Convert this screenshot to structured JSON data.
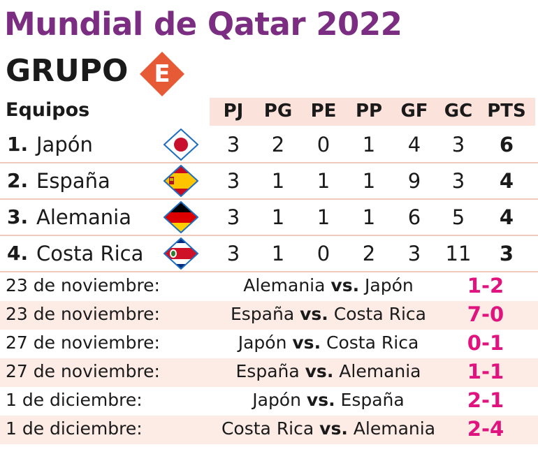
{
  "title": "Mundial de Qatar 2022",
  "group": {
    "label": "GRUPO",
    "letter": "E",
    "badge_color": "#e65a36"
  },
  "standings": {
    "team_header": "Equipos",
    "columns": [
      "PJ",
      "PG",
      "PE",
      "PP",
      "GF",
      "GC",
      "PTS"
    ],
    "rows": [
      {
        "pos": "1.",
        "team": "Japón",
        "flag_icon": "japan-flag-icon",
        "stats": [
          "3",
          "2",
          "0",
          "1",
          "4",
          "3",
          "6"
        ]
      },
      {
        "pos": "2.",
        "team": "España",
        "flag_icon": "spain-flag-icon",
        "stats": [
          "3",
          "1",
          "1",
          "1",
          "9",
          "3",
          "4"
        ]
      },
      {
        "pos": "3.",
        "team": "Alemania",
        "flag_icon": "germany-flag-icon",
        "stats": [
          "3",
          "1",
          "1",
          "1",
          "6",
          "5",
          "4"
        ]
      },
      {
        "pos": "4.",
        "team": "Costa Rica",
        "flag_icon": "costa-rica-flag-icon",
        "stats": [
          "3",
          "1",
          "0",
          "2",
          "3",
          "11",
          "3"
        ]
      }
    ]
  },
  "matches": {
    "vs_label": "vs.",
    "score_color": "#e0147f",
    "rows": [
      {
        "date": "23 de noviembre:",
        "home": "Alemania",
        "away": "Japón",
        "score": "1-2"
      },
      {
        "date": "23 de noviembre:",
        "home": "España",
        "away": "Costa Rica",
        "score": "7-0"
      },
      {
        "date": "27 de noviembre:",
        "home": "Japón",
        "away": "Costa Rica",
        "score": "0-1"
      },
      {
        "date": "27 de noviembre:",
        "home": "España",
        "away": "Alemania",
        "score": "1-1"
      },
      {
        "date": "1 de diciembre:",
        "home": "Japón",
        "away": "España",
        "score": "2-1"
      },
      {
        "date": "1 de diciembre:",
        "home": "Costa Rica",
        "away": "Alemania",
        "score": "2-4"
      }
    ]
  },
  "colors": {
    "title": "#7b2d82",
    "header_band": "#fbe3dc",
    "row_alt": "#fdece6",
    "divider": "#f0c9bd"
  }
}
